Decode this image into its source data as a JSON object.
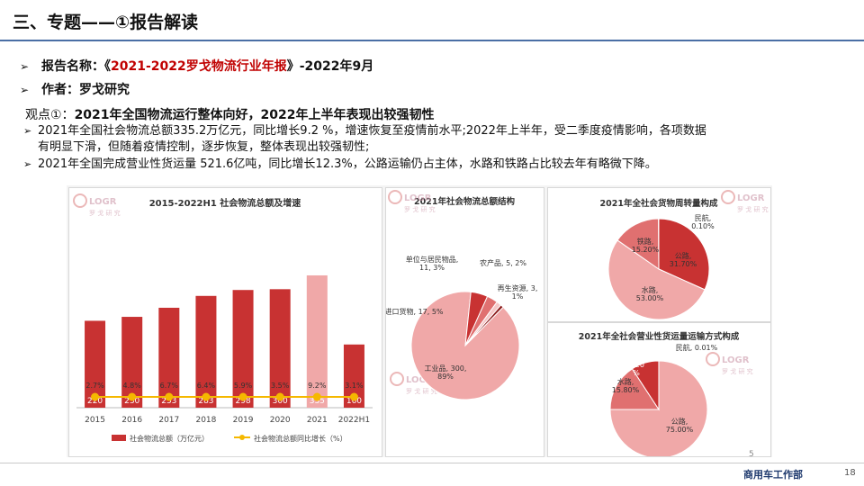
{
  "header": {
    "title": "三、专题——①报告解读"
  },
  "report": {
    "name_label": "报告名称：",
    "name_prefix": "《",
    "name_value": "2021-2022罗戈物流行业年报",
    "name_suffix": "》-2022年9月",
    "author": "作者：罗戈研究"
  },
  "viewpoint": {
    "label": "观点①：",
    "title": "2021年全国物流运行整体向好，2022年上半年表现出较强韧性",
    "points": [
      "2021年全国社会物流总额335.2万亿元，同比增长9.2 %，增速恢复至疫情前水平;2022年上半年，受二季度疫情影响，各项数据",
      "有明显下滑，但随着疫情控制，逐步恢复，整体表现出较强韧性;",
      "2021年全国完成营业性货运量 521.6亿吨，同比增长12.3%，公路运输仍占主体，水路和铁路占比较去年有略微下降。"
    ]
  },
  "watermark": {
    "logo": "LOGR",
    "sub": "罗 戈 研 究"
  },
  "chart_data": [
    {
      "type": "bar",
      "title": "2015-2022H1 社会物流总额及增速",
      "categories": [
        "2015",
        "2016",
        "2017",
        "2018",
        "2019",
        "2020",
        "2021",
        "2022H1"
      ],
      "series": [
        {
          "name": "社会物流总额（万亿元）",
          "values": [
            220,
            230,
            253,
            283,
            298,
            300,
            335,
            160
          ],
          "color": "#c83232",
          "highlight_index": 6,
          "highlight_color": "#f0a8a8"
        },
        {
          "name": "社会物流总额同比增长（%）",
          "type": "line",
          "values": [
            2.7,
            4.8,
            6.7,
            6.4,
            5.9,
            3.5,
            9.2,
            3.1
          ],
          "labels": [
            "2.7%",
            "4.8%",
            "6.7%",
            "6.4%",
            "5.9%",
            "3.5%",
            "9.2%",
            "3.1%"
          ],
          "color": "#f5b800"
        }
      ],
      "bar_max": 360,
      "line_range": [
        0,
        10.5
      ]
    },
    {
      "type": "pie",
      "title": "2021年社会物流总额结构",
      "slices": [
        {
          "label": "工业品, 300,\n89%",
          "value": 300,
          "color": "#f0a8a8"
        },
        {
          "label": "进口货物, 17, 5%",
          "value": 17,
          "color": "#c83232"
        },
        {
          "label": "单位与居民物品,\n11, 3%",
          "value": 11,
          "color": "#e07070"
        },
        {
          "label": "农产品, 5, 2%",
          "value": 5,
          "color": "#f5c8c8"
        },
        {
          "label": "再生资源, 3,\n1%",
          "value": 3,
          "color": "#8b1a1a"
        }
      ]
    },
    {
      "type": "pie",
      "title": "2021年全社会货物周转量构成",
      "slices": [
        {
          "label": "公路,\n31.70%",
          "value": 31.7,
          "color": "#c83232"
        },
        {
          "label": "水路,\n53.00%",
          "value": 53.0,
          "color": "#f0a8a8"
        },
        {
          "label": "铁路,\n15.20%",
          "value": 15.2,
          "color": "#e07070"
        },
        {
          "label": "民航,\n0.10%",
          "value": 0.1,
          "color": "#8b1a1a"
        }
      ]
    },
    {
      "type": "pie",
      "title": "2021年全社会营业性货运量运输方式构成",
      "slices": [
        {
          "label": "公路,\n75.00%",
          "value": 75.0,
          "color": "#f0a8a8"
        },
        {
          "label": "水路,\n15.80%",
          "value": 15.8,
          "color": "#e07070"
        },
        {
          "label": "铁路,\n9.20\n%",
          "value": 9.2,
          "color": "#c83232"
        },
        {
          "label": "民航, 0.01%",
          "value": 0.01,
          "color": "#8b1a1a"
        }
      ]
    }
  ],
  "footer": {
    "dept": "商用车工作部",
    "page": "18",
    "small_mark": "5"
  }
}
